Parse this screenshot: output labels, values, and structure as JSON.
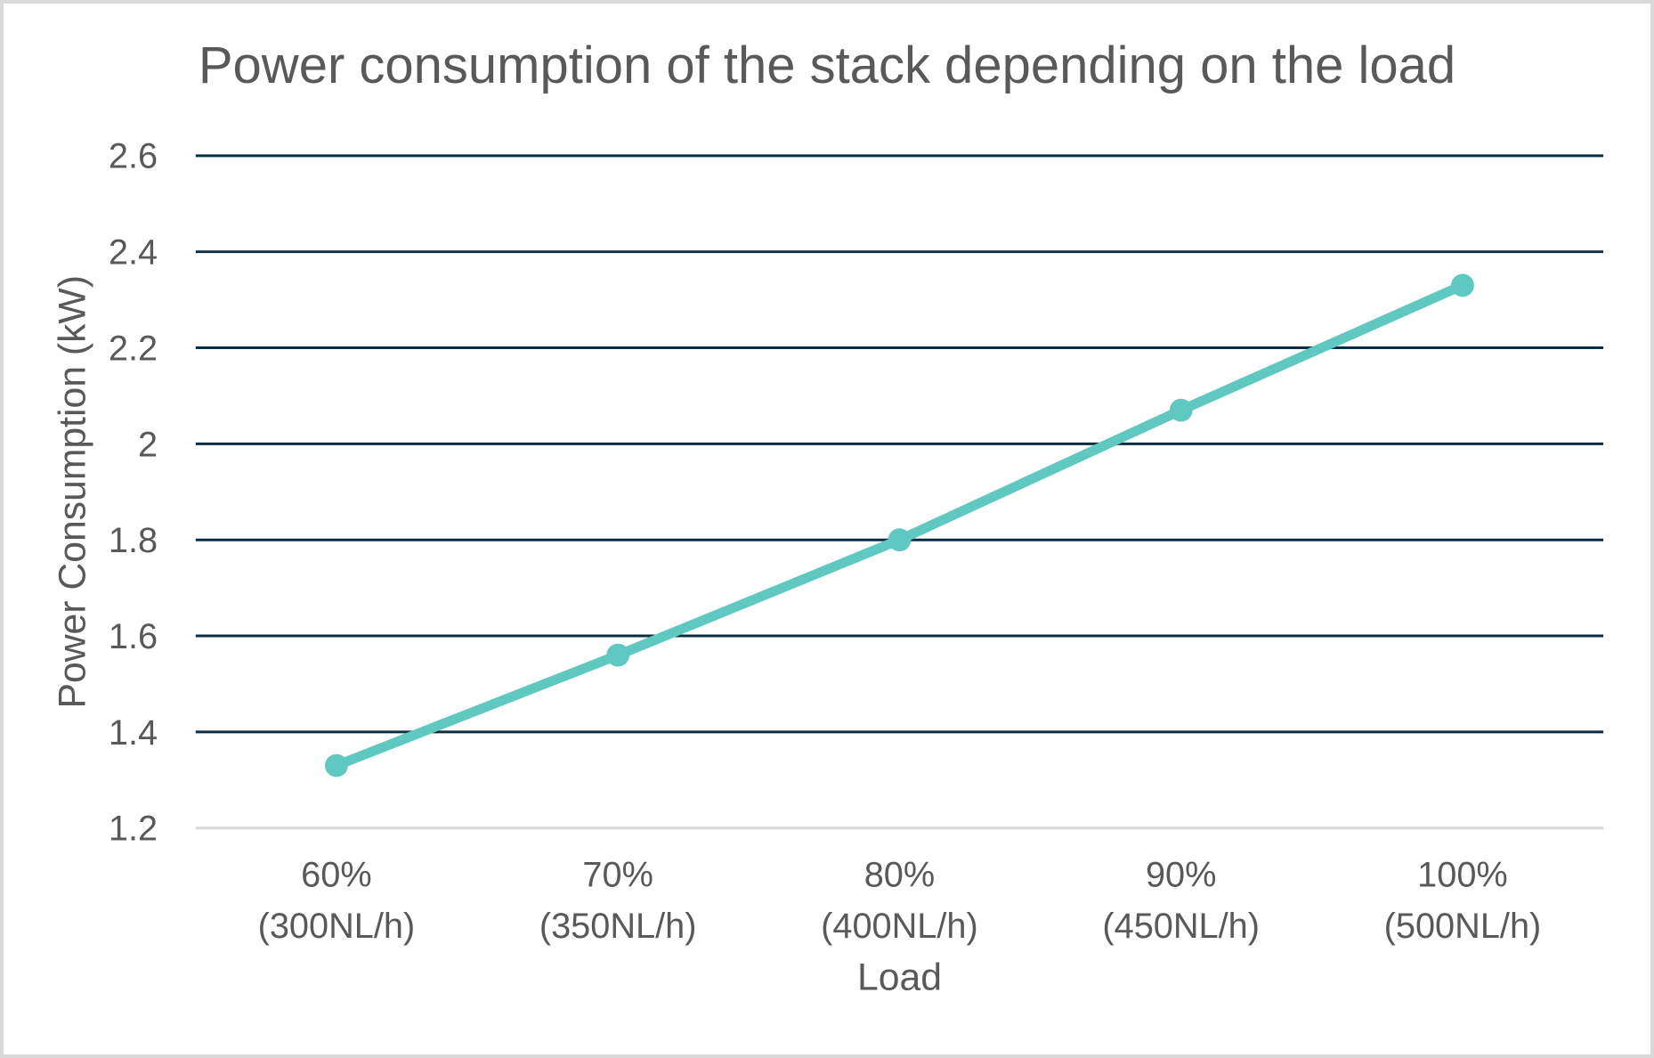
{
  "chart_data": {
    "type": "line",
    "title": "Power consumption of the stack depending on the load",
    "xlabel": "Load",
    "ylabel": "Power Consumption (kW)",
    "categories": [
      {
        "label": "60%",
        "sublabel": "(300NL/h)"
      },
      {
        "label": "70%",
        "sublabel": "(350NL/h)"
      },
      {
        "label": "80%",
        "sublabel": "(400NL/h)"
      },
      {
        "label": "90%",
        "sublabel": "(450NL/h)"
      },
      {
        "label": "100%",
        "sublabel": "(500NL/h)"
      }
    ],
    "series": [
      {
        "name": "Power Consumption (kW)",
        "values": [
          1.33,
          1.56,
          1.8,
          2.07,
          2.33
        ]
      }
    ],
    "ylim": [
      1.2,
      2.6
    ],
    "ytick_step": 0.2,
    "yticks": [
      1.2,
      1.4,
      1.6,
      1.8,
      2,
      2.2,
      2.4,
      2.6
    ],
    "grid": true,
    "legend": "none",
    "colors": {
      "line": "#5ec8c1",
      "marker": "#5ec8c1",
      "gridline": "#0d2d40",
      "axis_line": "#d9d9d9",
      "text": "#595959",
      "frame_border": "#d9d9d9",
      "background": "#ffffff"
    }
  }
}
